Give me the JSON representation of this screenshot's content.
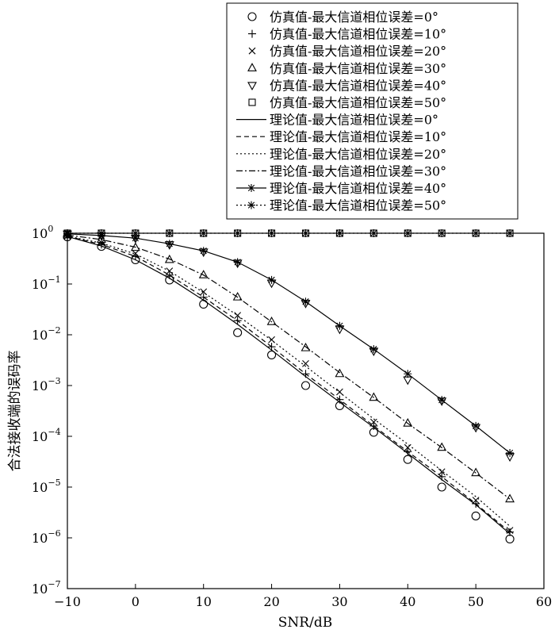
{
  "chart_data": {
    "type": "line",
    "title": "",
    "xlabel": "SNR/dB",
    "ylabel": "合法接收端的误码率",
    "xlim": [
      -10,
      60
    ],
    "ylim": [
      1e-07,
      1
    ],
    "yscale": "log",
    "xticks": [
      -10,
      0,
      10,
      20,
      30,
      40,
      50,
      60
    ],
    "xtick_labels": [
      "−10",
      "0",
      "10",
      "20",
      "30",
      "40",
      "50",
      "60"
    ],
    "yticks": [
      {
        "value": 1,
        "base": "10",
        "exp": "0"
      },
      {
        "value": 0.1,
        "base": "10",
        "exp": "−1"
      },
      {
        "value": 0.01,
        "base": "10",
        "exp": "−2"
      },
      {
        "value": 0.001,
        "base": "10",
        "exp": "−3"
      },
      {
        "value": 0.0001,
        "base": "10",
        "exp": "−4"
      },
      {
        "value": 1e-05,
        "base": "10",
        "exp": "−5"
      },
      {
        "value": 1e-06,
        "base": "10",
        "exp": "−6"
      },
      {
        "value": 1e-07,
        "base": "10",
        "exp": "−7"
      }
    ],
    "grid": false,
    "legend_position": "top-right",
    "x": [
      -10,
      -5,
      0,
      5,
      10,
      15,
      20,
      25,
      30,
      35,
      40,
      45,
      50,
      55
    ],
    "series": [
      {
        "name": "仿真值-最大信道相位误差=0°",
        "kind": "marker",
        "marker": "circle",
        "values": [
          0.85,
          0.55,
          0.3,
          0.12,
          0.04,
          0.011,
          0.004,
          0.001,
          0.0004,
          0.00012,
          3.5e-05,
          1e-05,
          2.7e-06,
          9.5e-07
        ]
      },
      {
        "name": "仿真值-最大信道相位误差=10°",
        "kind": "marker",
        "marker": "plus",
        "values": [
          0.87,
          0.6,
          0.35,
          0.15,
          0.055,
          0.019,
          0.0058,
          0.0017,
          0.00053,
          0.00016,
          5e-05,
          1.6e-05,
          4.7e-06,
          1.3e-06
        ]
      },
      {
        "name": "仿真值-最大信道相位误差=20°",
        "kind": "marker",
        "marker": "x",
        "values": [
          0.88,
          0.65,
          0.4,
          0.18,
          0.07,
          0.024,
          0.008,
          0.0027,
          0.00075,
          0.00019,
          6e-05,
          2e-05,
          5.5e-06,
          1.4e-06
        ]
      },
      {
        "name": "仿真值-最大信道相位误差=30°",
        "kind": "marker",
        "marker": "triangle-up",
        "values": [
          0.92,
          0.75,
          0.52,
          0.3,
          0.15,
          0.055,
          0.018,
          0.0055,
          0.0017,
          0.00058,
          0.00018,
          6e-05,
          1.9e-05,
          5.8e-06
        ]
      },
      {
        "name": "仿真值-最大信道相位误差=40°",
        "kind": "marker",
        "marker": "triangle-down",
        "values": [
          0.97,
          0.9,
          0.8,
          0.6,
          0.43,
          0.26,
          0.105,
          0.042,
          0.013,
          0.0048,
          0.0013,
          0.0005,
          0.00015,
          4e-05
        ]
      },
      {
        "name": "仿真值-最大信道相位误差=50°",
        "kind": "marker",
        "marker": "square",
        "values": [
          1,
          1,
          1,
          1,
          1,
          1,
          1,
          1,
          1,
          1,
          1,
          1,
          1,
          1
        ]
      },
      {
        "name": "理论值-最大信道相位误差=0°",
        "kind": "line",
        "dash": "solid",
        "values": [
          0.86,
          0.56,
          0.3,
          0.13,
          0.048,
          0.016,
          0.005,
          0.0015,
          0.00047,
          0.00015,
          4.6e-05,
          1.4e-05,
          4.5e-06,
          1.2e-06
        ]
      },
      {
        "name": "理论值-最大信道相位误差=10°",
        "kind": "line",
        "dash": "dashed",
        "values": [
          0.87,
          0.6,
          0.35,
          0.15,
          0.055,
          0.019,
          0.0058,
          0.0017,
          0.00053,
          0.00016,
          5e-05,
          1.6e-05,
          4.7e-06,
          1.3e-06
        ]
      },
      {
        "name": "理论值-最大信道相位误差=20°",
        "kind": "line",
        "dash": "dotted",
        "values": [
          0.88,
          0.64,
          0.39,
          0.18,
          0.068,
          0.024,
          0.0078,
          0.0024,
          0.00073,
          0.00022,
          7e-05,
          2.1e-05,
          6.5e-06,
          1.7e-06
        ]
      },
      {
        "name": "理论值-最大信道相位误差=30°",
        "kind": "line",
        "dash": "dashdot",
        "values": [
          0.92,
          0.75,
          0.53,
          0.31,
          0.15,
          0.055,
          0.018,
          0.0058,
          0.0018,
          0.00058,
          0.00018,
          6e-05,
          1.9e-05,
          5.8e-06
        ]
      },
      {
        "name": "理论值-最大信道相位误差=40°",
        "kind": "line",
        "dash": "solid",
        "marker": "asterisk",
        "values": [
          0.97,
          0.9,
          0.8,
          0.62,
          0.45,
          0.27,
          0.12,
          0.045,
          0.015,
          0.0052,
          0.0017,
          0.00052,
          0.00016,
          4.7e-05
        ]
      },
      {
        "name": "理论值-最大信道相位误差=50°",
        "kind": "line",
        "dash": "dotted",
        "marker": "asterisk",
        "values": [
          1,
          1,
          1,
          1,
          1,
          1,
          1,
          1,
          1,
          1,
          1,
          1,
          1,
          1
        ]
      }
    ]
  }
}
